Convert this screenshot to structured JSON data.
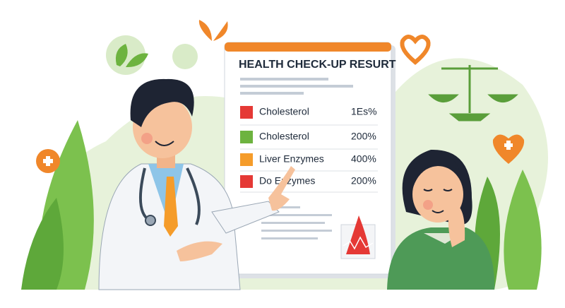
{
  "report": {
    "title": "HEALTH CHECK-UP RESURT",
    "rows": [
      {
        "label": "Cholesterol",
        "value": "1Es%"
      },
      {
        "label": "Cholesterol",
        "value": "200%"
      },
      {
        "label": "Liver Enzymes",
        "value": "400%"
      },
      {
        "label": "Do Enzymes",
        "value": "200%"
      }
    ]
  }
}
